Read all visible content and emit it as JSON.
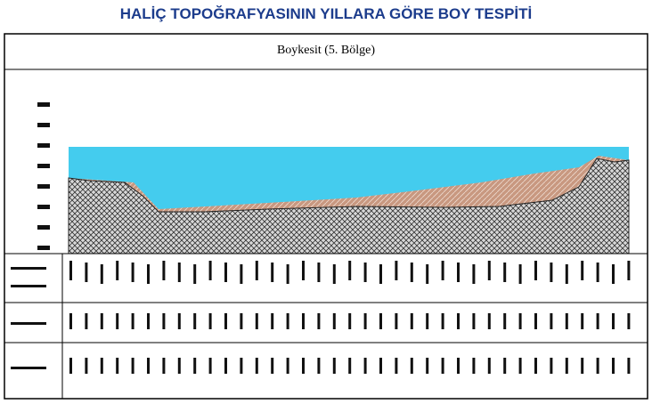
{
  "header": {
    "title": "HALİÇ TOPOĞRAFYASININ YILLARA GÖRE BOY TESPİTİ"
  },
  "panel": {
    "title": "Boykesit (5. Bölge)"
  }
}
